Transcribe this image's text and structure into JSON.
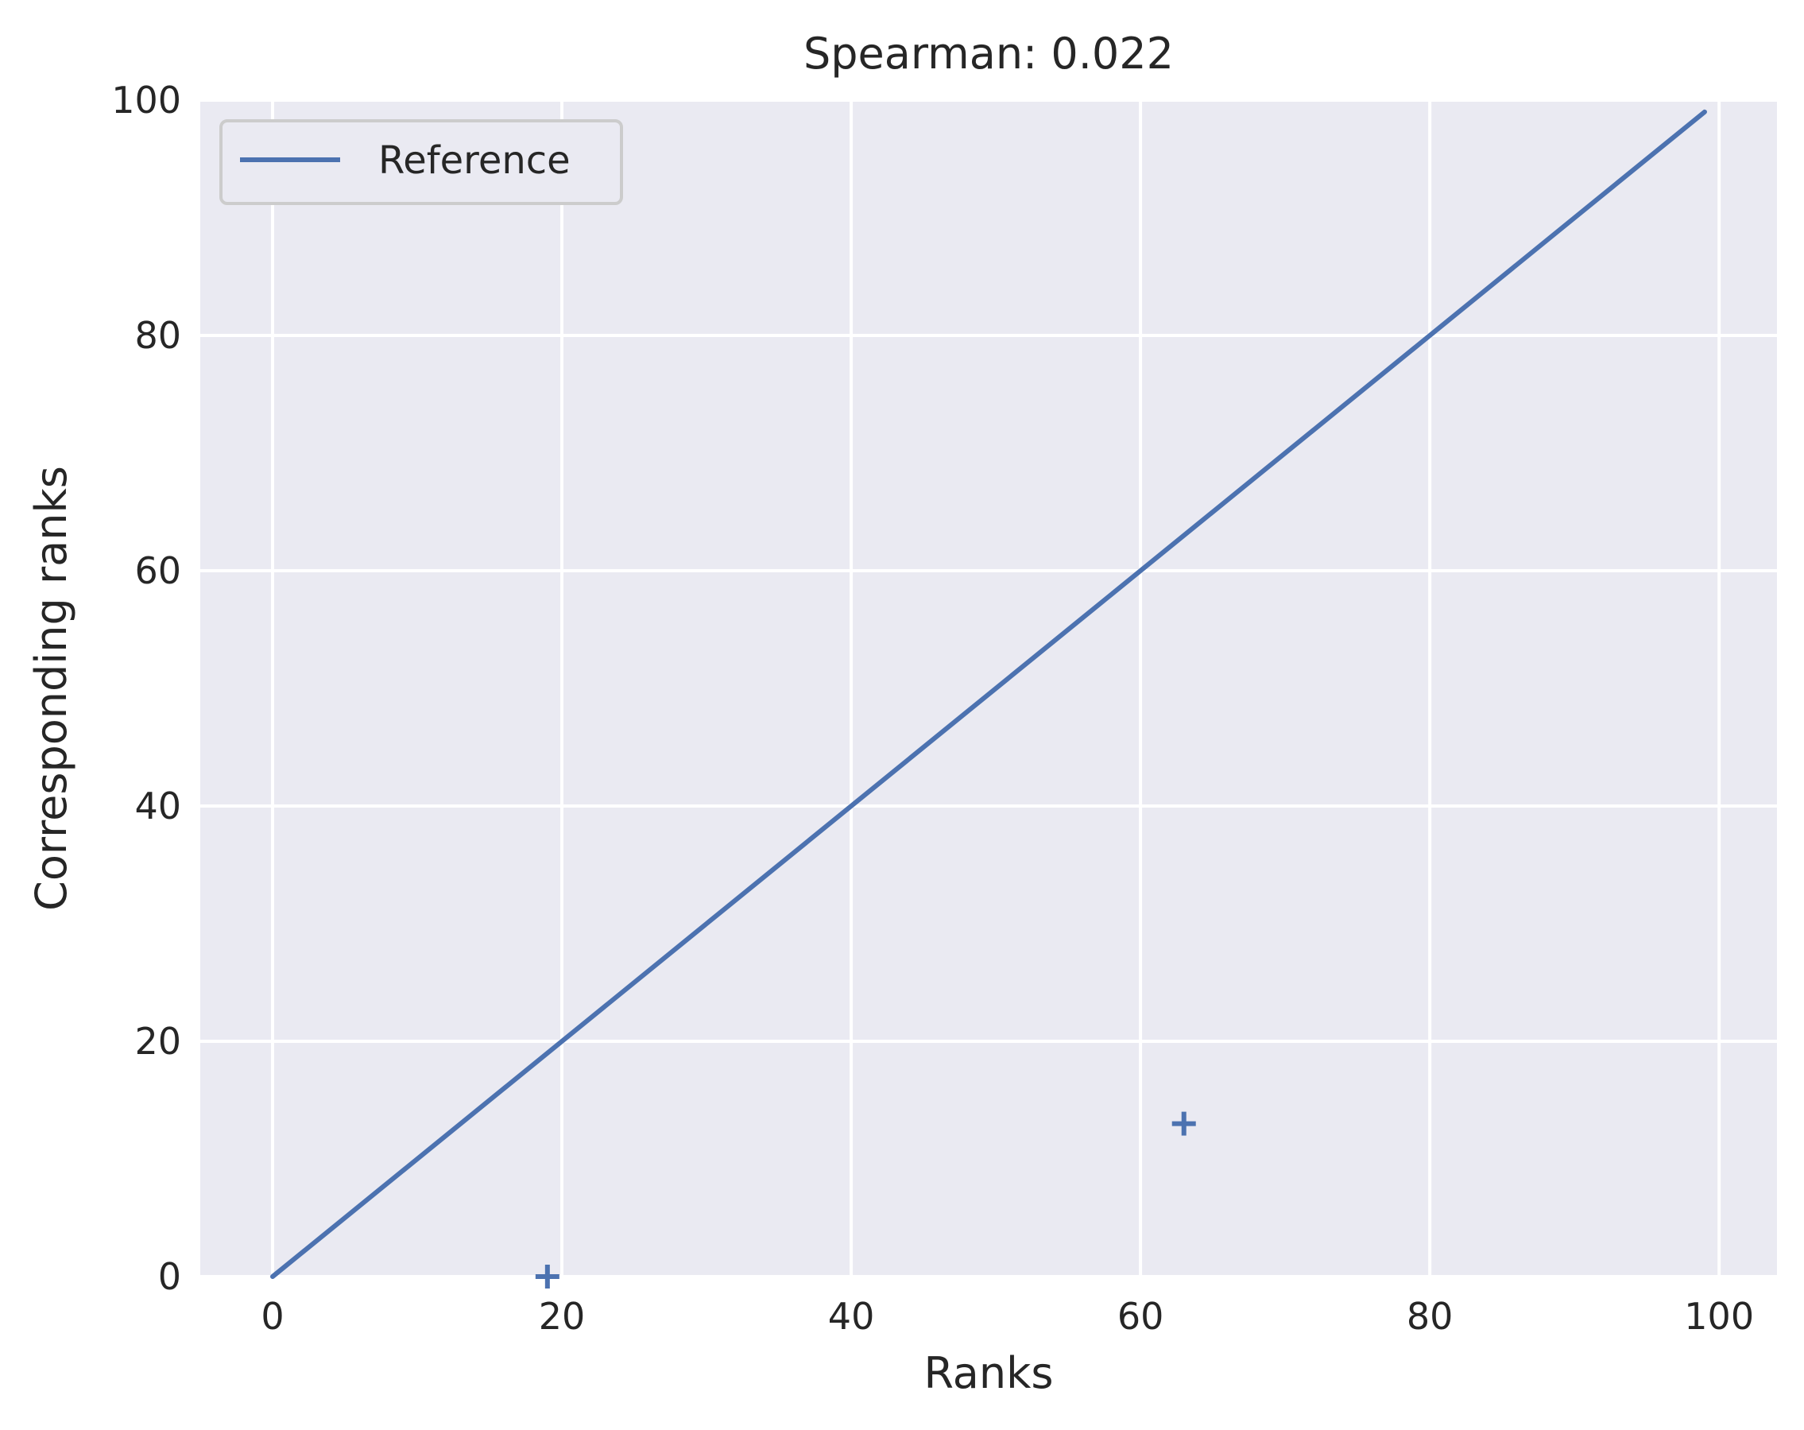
{
  "chart_data": {
    "type": "scatter",
    "title": "Spearman: 0.022",
    "xlabel": "Ranks",
    "ylabel": "Corresponding ranks",
    "xlim": [
      -5,
      104
    ],
    "ylim": [
      0,
      100
    ],
    "xticks": [
      0,
      20,
      40,
      60,
      80,
      100
    ],
    "yticks": [
      0,
      20,
      40,
      60,
      80,
      100
    ],
    "grid": true,
    "legend_position": "top-left",
    "colors": {
      "series": "#4c72b0",
      "background": "#eaeaf2",
      "grid": "#ffffff"
    },
    "series": [
      {
        "name": "Reference",
        "kind": "line",
        "x": [
          0,
          99
        ],
        "y": [
          0,
          99
        ]
      },
      {
        "kind": "scatter",
        "marker": "+",
        "x": [
          19,
          63
        ],
        "y": [
          0,
          13
        ]
      }
    ]
  }
}
